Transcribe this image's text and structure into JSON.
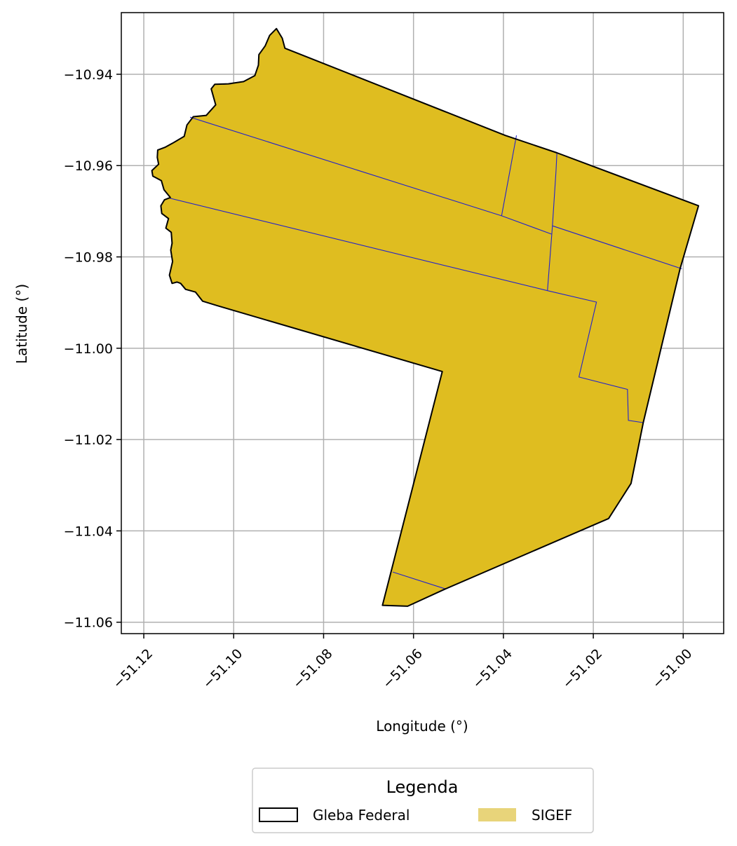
{
  "chart_data": {
    "type": "map",
    "xlabel": "Longitude (°)",
    "ylabel": "Latitude (°)",
    "xlim": [
      -51.125,
      -50.991
    ],
    "ylim": [
      -11.0625,
      -10.9265
    ],
    "grid": true,
    "xticks": [
      -51.12,
      -51.1,
      -51.08,
      -51.06,
      -51.04,
      -51.02,
      -51.0
    ],
    "xtick_labels": [
      "−51.12",
      "−51.10",
      "−51.08",
      "−51.06",
      "−51.04",
      "−51.02",
      "−51.00"
    ],
    "yticks": [
      -10.94,
      -10.96,
      -10.98,
      -11.0,
      -11.02,
      -11.04,
      -11.06
    ],
    "ytick_labels": [
      "−10.94",
      "−10.96",
      "−10.98",
      "−11.00",
      "−11.02",
      "−11.04",
      "−11.06"
    ],
    "legend": {
      "title": "Legenda",
      "placement": "bottom-center",
      "entries": [
        {
          "label": "Gleba Federal",
          "style": "outline"
        },
        {
          "label": "SIGEF",
          "style": "fill"
        }
      ]
    },
    "colors": {
      "gleba_outline": "#000000",
      "sigef_fill": "#dfbd20",
      "sigef_legend_fill": "#e8d47a",
      "parcel_lines": "#2222cc",
      "grid": "#b0b0b0"
    },
    "gleba_federal": [
      [
        -51.0886,
        -10.9343
      ],
      [
        -51.0396,
        -10.9534
      ],
      [
        -51.0281,
        -10.9572
      ],
      [
        -50.9966,
        -10.9688
      ],
      [
        -51.0007,
        -10.9826
      ],
      [
        -51.0089,
        -11.0163
      ],
      [
        -51.0116,
        -11.0296
      ],
      [
        -51.0166,
        -11.0373
      ],
      [
        -51.0529,
        -11.0527
      ],
      [
        -51.0613,
        -11.0565
      ],
      [
        -51.0669,
        -11.0563
      ],
      [
        -51.0536,
        -11.0051
      ],
      [
        -51.1036,
        -10.9907
      ],
      [
        -51.1069,
        -10.9897
      ],
      [
        -51.1085,
        -10.9877
      ],
      [
        -51.1107,
        -10.9871
      ],
      [
        -51.1118,
        -10.9858
      ],
      [
        -51.1126,
        -10.9855
      ],
      [
        -51.1137,
        -10.9858
      ],
      [
        -51.1143,
        -10.984
      ],
      [
        -51.1136,
        -10.981
      ],
      [
        -51.114,
        -10.9785
      ],
      [
        -51.1137,
        -10.977
      ],
      [
        -51.1139,
        -10.9746
      ],
      [
        -51.1151,
        -10.9737
      ],
      [
        -51.1145,
        -10.9716
      ],
      [
        -51.116,
        -10.9705
      ],
      [
        -51.1162,
        -10.9688
      ],
      [
        -51.1154,
        -10.9675
      ],
      [
        -51.1141,
        -10.967
      ],
      [
        -51.1155,
        -10.9653
      ],
      [
        -51.1161,
        -10.9633
      ],
      [
        -51.118,
        -10.9623
      ],
      [
        -51.1182,
        -10.9611
      ],
      [
        -51.1167,
        -10.9597
      ],
      [
        -51.117,
        -10.9582
      ],
      [
        -51.1169,
        -10.9566
      ],
      [
        -51.1153,
        -10.956
      ],
      [
        -51.1136,
        -10.9551
      ],
      [
        -51.111,
        -10.9536
      ],
      [
        -51.1104,
        -10.9511
      ],
      [
        -51.109,
        -10.9493
      ],
      [
        -51.1061,
        -10.949
      ],
      [
        -51.104,
        -10.9467
      ],
      [
        -51.105,
        -10.9432
      ],
      [
        -51.1042,
        -10.9422
      ],
      [
        -51.1012,
        -10.9421
      ],
      [
        -51.0978,
        -10.9416
      ],
      [
        -51.0953,
        -10.9403
      ],
      [
        -51.0945,
        -10.938
      ],
      [
        -51.0944,
        -10.9357
      ],
      [
        -51.093,
        -10.9338
      ],
      [
        -51.092,
        -10.9315
      ],
      [
        -51.0905,
        -10.93
      ],
      [
        -51.0892,
        -10.9321
      ],
      [
        -51.0886,
        -10.9343
      ]
    ],
    "sigef_parcel_lines": [
      [
        [
          -51.1097,
          -10.9494
        ],
        [
          -51.0404,
          -10.971
        ],
        [
          -51.0293,
          -10.975
        ]
      ],
      [
        [
          -51.1144,
          -10.9671
        ],
        [
          -51.0302,
          -10.9874
        ]
      ],
      [
        [
          -51.0404,
          -10.971
        ],
        [
          -51.0371,
          -10.9534
        ]
      ],
      [
        [
          -51.0302,
          -10.9874
        ],
        [
          -51.0291,
          -10.9732
        ],
        [
          -51.0283,
          -10.9612
        ],
        [
          -51.0281,
          -10.9572
        ]
      ],
      [
        [
          -51.0291,
          -10.9732
        ],
        [
          -51.0003,
          -10.9826
        ]
      ],
      [
        [
          -51.0302,
          -10.9874
        ],
        [
          -51.0193,
          -10.9899
        ],
        [
          -51.0232,
          -11.0063
        ],
        [
          -51.0124,
          -11.009
        ],
        [
          -51.0122,
          -11.0158
        ],
        [
          -51.0089,
          -11.0163
        ]
      ],
      [
        [
          -51.0646,
          -11.049
        ],
        [
          -51.0529,
          -11.0527
        ]
      ],
      [
        [
          -51.1024,
          -10.9422
        ],
        [
          -51.1005,
          -10.9421
        ]
      ]
    ]
  }
}
